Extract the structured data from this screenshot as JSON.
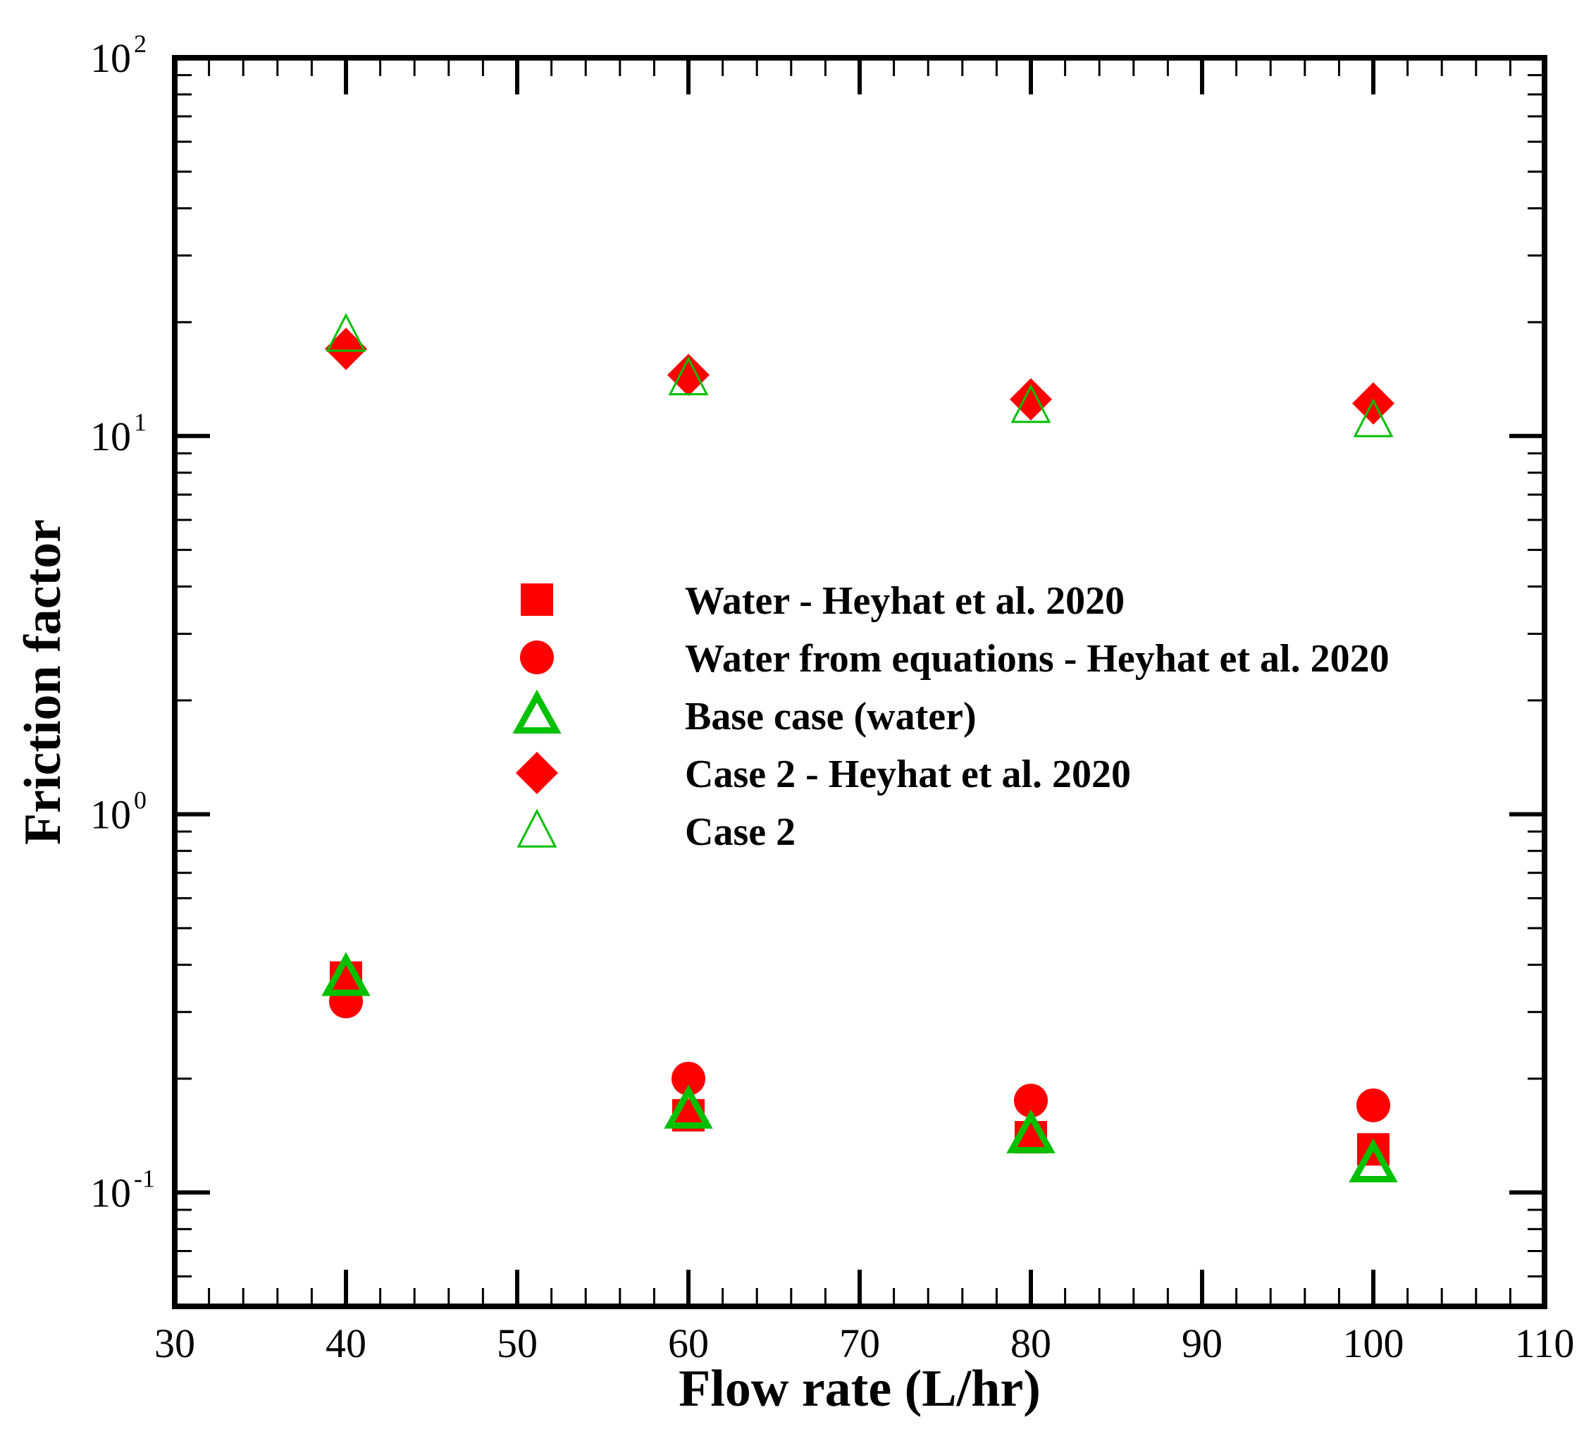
{
  "chart_data": {
    "type": "scatter",
    "title": "",
    "xlabel": "Flow rate (L/hr)",
    "ylabel": "Friction factor",
    "xlim": [
      30,
      110
    ],
    "ylim": [
      0.05,
      100
    ],
    "yscale": "log",
    "x_ticks": [
      30,
      40,
      50,
      60,
      70,
      80,
      90,
      100,
      110
    ],
    "y_ticks": [
      {
        "value": 0.1,
        "base": "10",
        "exponent": "-1"
      },
      {
        "value": 1,
        "base": "10",
        "exponent": "0"
      },
      {
        "value": 10,
        "base": "10",
        "exponent": "1"
      },
      {
        "value": 100,
        "base": "10",
        "exponent": "2"
      }
    ],
    "legend_position": "center",
    "series": [
      {
        "name": "Water - Heyhat et al. 2020",
        "marker": "filled-square",
        "color": "#ff0000",
        "x": [
          40,
          60,
          80,
          100
        ],
        "y": [
          0.37,
          0.16,
          0.14,
          0.13
        ]
      },
      {
        "name": "Water from equations - Heyhat et al. 2020",
        "marker": "filled-circle",
        "color": "#ff0000",
        "x": [
          40,
          60,
          80,
          100
        ],
        "y": [
          0.32,
          0.2,
          0.175,
          0.17
        ]
      },
      {
        "name": "Base case (water)",
        "marker": "thick-open-triangle",
        "color": "#00c000",
        "x": [
          40,
          60,
          80,
          100
        ],
        "y": [
          0.37,
          0.165,
          0.142,
          0.119
        ]
      },
      {
        "name": "Case 2 - Heyhat et al. 2020",
        "marker": "filled-diamond",
        "color": "#ff0000",
        "x": [
          40,
          60,
          80,
          100
        ],
        "y": [
          17,
          14.5,
          12.5,
          12.2
        ]
      },
      {
        "name": "Case 2",
        "marker": "thin-open-triangle",
        "color": "#00c000",
        "x": [
          40,
          60,
          80,
          100
        ],
        "y": [
          18.5,
          14.2,
          12,
          11
        ]
      }
    ]
  }
}
